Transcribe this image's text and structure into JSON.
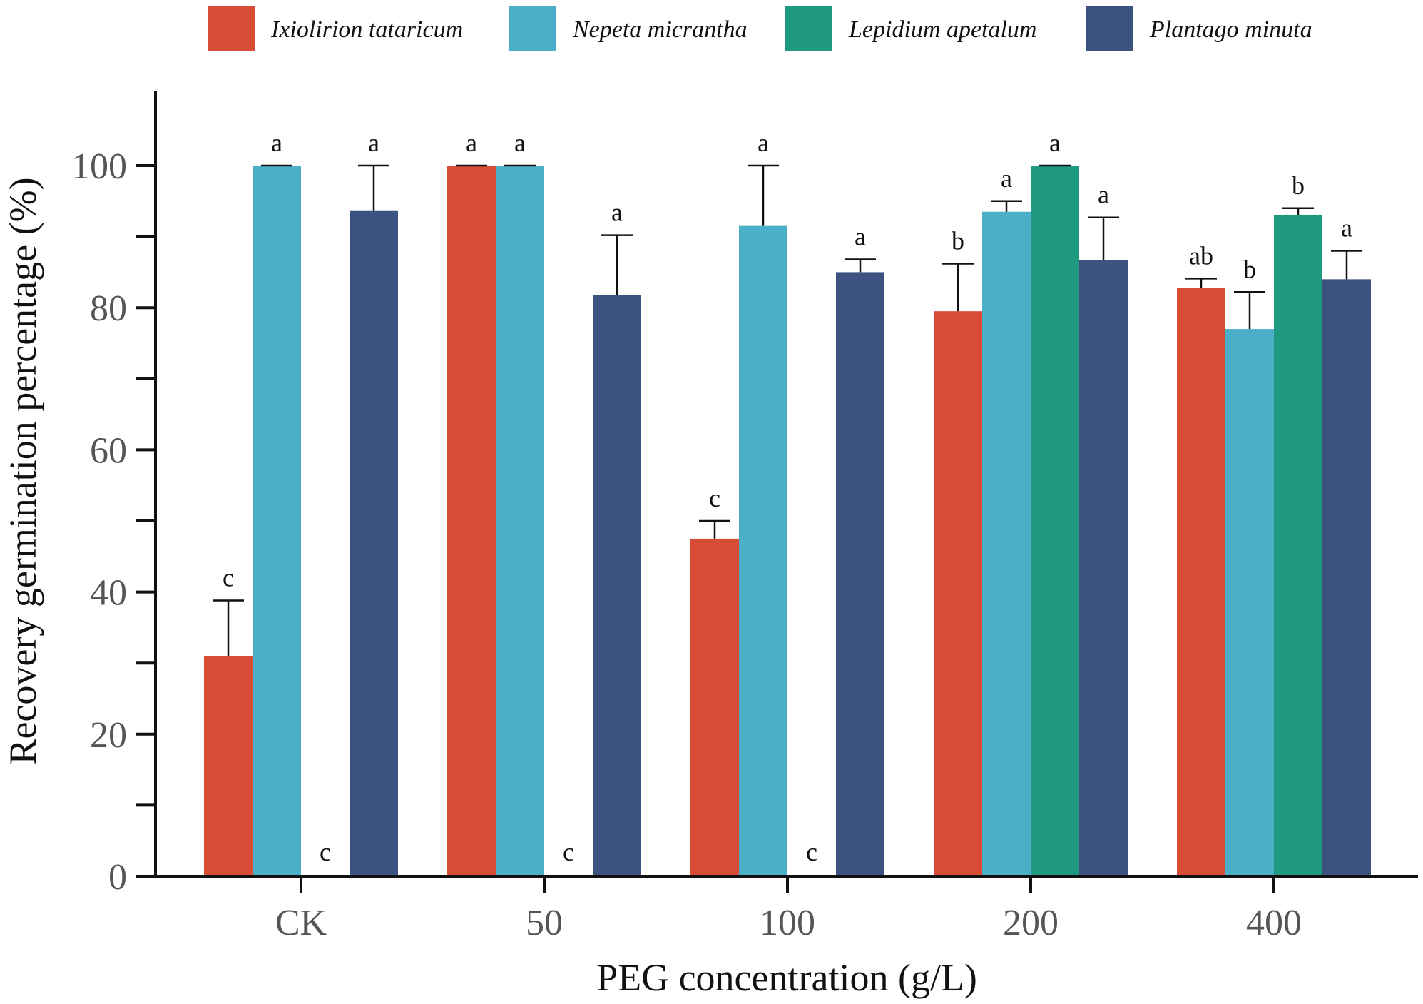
{
  "chart_data": {
    "type": "bar",
    "title": "",
    "xlabel": "PEG concentration (g/L)",
    "ylabel": "Recovery germination percentage (%)",
    "ylim": [
      0,
      110
    ],
    "y_ticks": [
      0,
      20,
      40,
      60,
      80,
      100
    ],
    "grid": false,
    "legend_position": "top",
    "categories": [
      "CK",
      "50",
      "100",
      "200",
      "400"
    ],
    "series": [
      {
        "name": "Ixiolirion tataricum",
        "color": "#d84b35",
        "values": [
          31,
          100,
          47.5,
          79.5,
          82.8
        ],
        "error": [
          7.8,
          0,
          2.5,
          6.7,
          1.3
        ],
        "labels": [
          "c",
          "a",
          "c",
          "b",
          "ab"
        ]
      },
      {
        "name": "Nepeta micrantha",
        "color": "#4aafc7",
        "values": [
          100,
          100,
          91.5,
          93.5,
          77
        ],
        "error": [
          0,
          0,
          8.5,
          1.5,
          5.2
        ],
        "labels": [
          "a",
          "a",
          "a",
          "a",
          "b"
        ]
      },
      {
        "name": "Lepidium apetalum",
        "color": "#1f9980",
        "values": [
          0,
          0,
          0,
          100,
          93
        ],
        "error": [
          0,
          0,
          0,
          0,
          1
        ],
        "labels": [
          "c",
          "c",
          "c",
          "a",
          "b"
        ]
      },
      {
        "name": "Plantago minuta",
        "color": "#3c5280",
        "values": [
          93.7,
          81.8,
          85,
          86.7,
          84
        ],
        "error": [
          6.3,
          8.4,
          1.8,
          6,
          4
        ],
        "labels": [
          "a",
          "a",
          "a",
          "a",
          "a"
        ]
      }
    ]
  }
}
